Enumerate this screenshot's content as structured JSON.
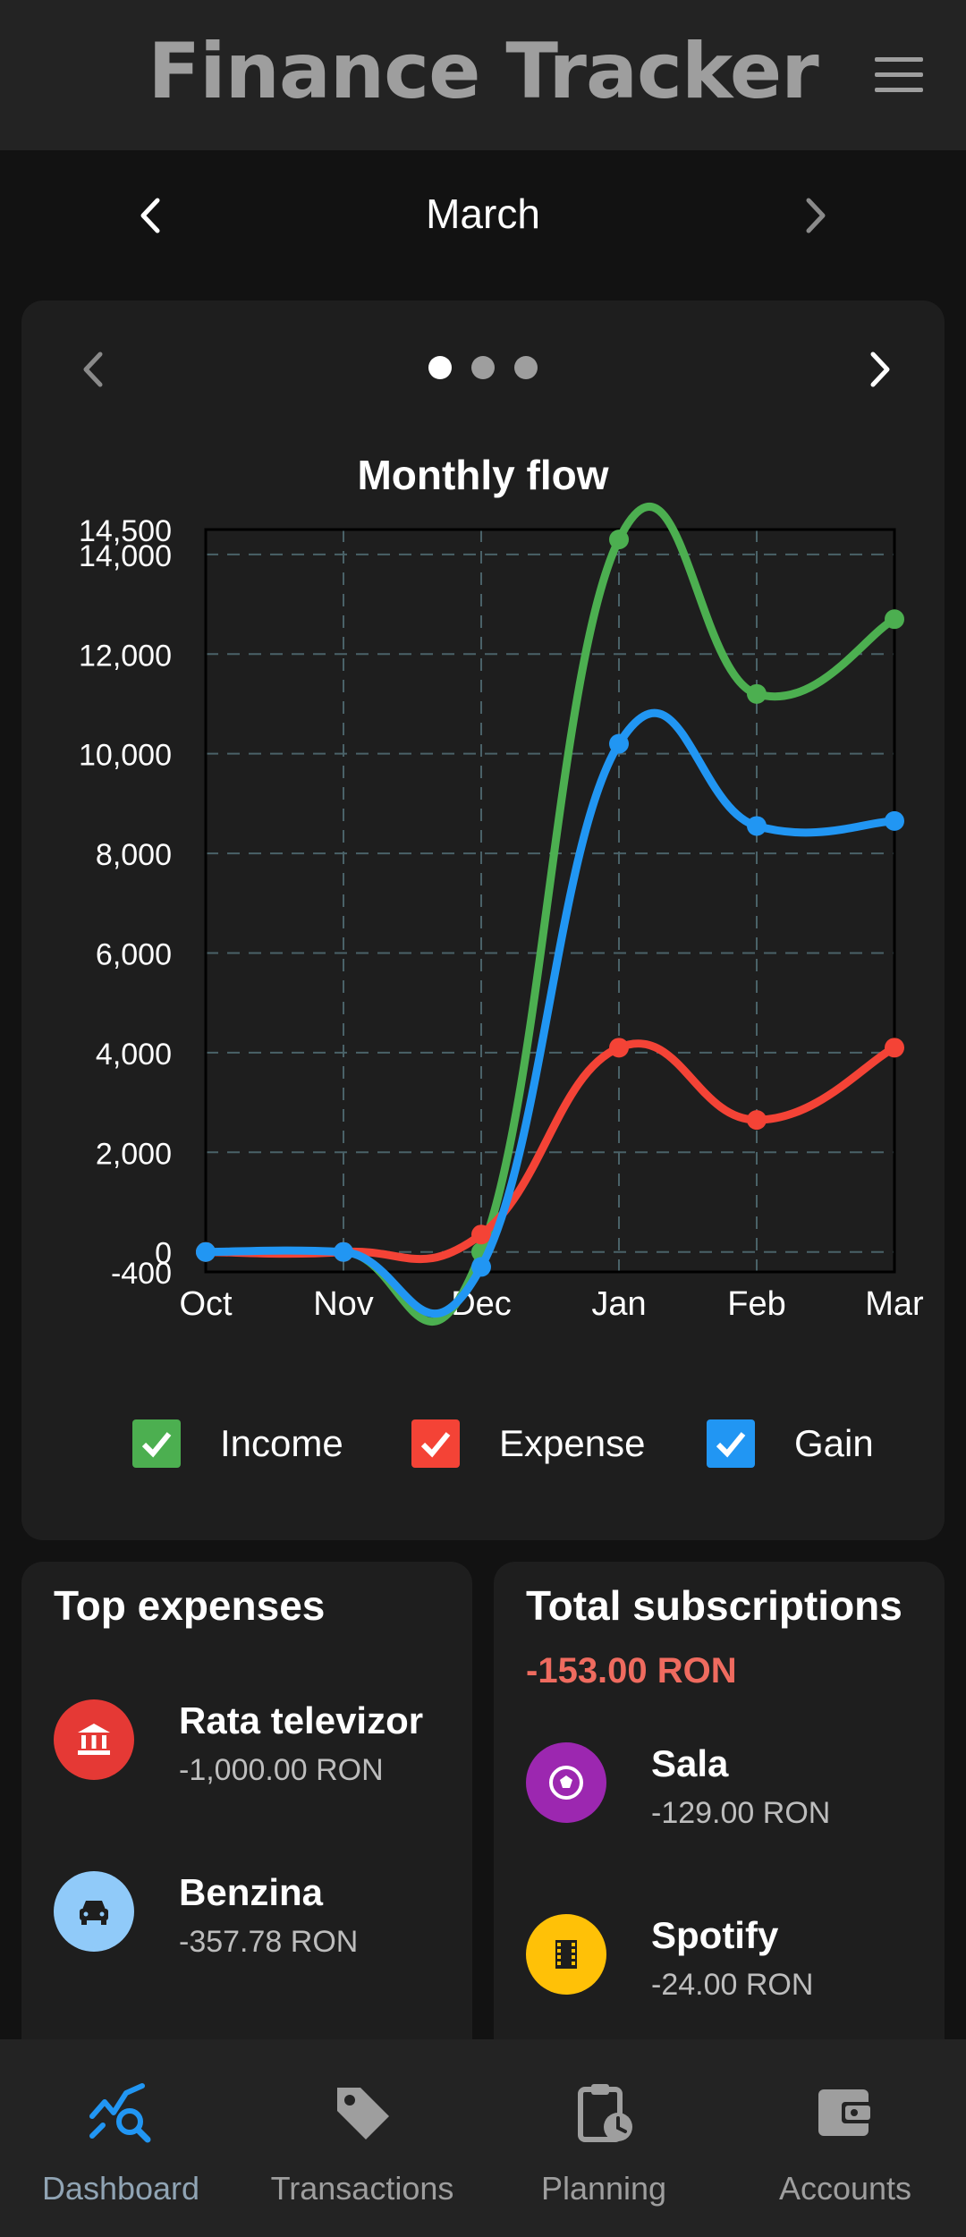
{
  "app": {
    "title": "Finance Tracker"
  },
  "month_selector": {
    "month": "March"
  },
  "chart_card": {
    "pages": 3,
    "active_page": 1,
    "legend": [
      {
        "label": "Income",
        "color": "#4caf50"
      },
      {
        "label": "Expense",
        "color": "#f44336"
      },
      {
        "label": "Gain",
        "color": "#2196f3"
      }
    ]
  },
  "chart_data": {
    "type": "line",
    "title": "Monthly flow",
    "categories": [
      "Oct",
      "Nov",
      "Dec",
      "Jan",
      "Feb",
      "Mar"
    ],
    "ylim": [
      -400,
      14500
    ],
    "yticks": [
      -400,
      0,
      2000,
      4000,
      6000,
      8000,
      10000,
      12000,
      14000,
      14500
    ],
    "ytick_labels": [
      "-400",
      "0",
      "2,000",
      "4,000",
      "6,000",
      "8,000",
      "10,000",
      "12,000",
      "14,000",
      "14,500"
    ],
    "grid": true,
    "legend_position": "bottom",
    "series": [
      {
        "name": "Income",
        "color": "#4caf50",
        "values": [
          0,
          0,
          0,
          14300,
          11200,
          12700
        ]
      },
      {
        "name": "Expense",
        "color": "#f44336",
        "values": [
          0,
          0,
          350,
          4100,
          2650,
          4100
        ]
      },
      {
        "name": "Gain",
        "color": "#2196f3",
        "values": [
          0,
          0,
          -300,
          10200,
          8550,
          8650
        ]
      }
    ]
  },
  "top_expenses": {
    "title": "Top expenses",
    "items": [
      {
        "name": "Rata televizor",
        "amount": "-1,000.00 RON",
        "icon": "bank-icon",
        "color": "#e53935"
      },
      {
        "name": "Benzina",
        "amount": "-357.78 RON",
        "icon": "car-icon",
        "color": "#90caf9"
      }
    ]
  },
  "subscriptions": {
    "title": "Total subscriptions",
    "total": "-153.00 RON",
    "items": [
      {
        "name": "Sala",
        "amount": "-129.00 RON",
        "icon": "soccer-ball-icon",
        "color": "#9c27b0"
      },
      {
        "name": "Spotify",
        "amount": "-24.00 RON",
        "icon": "film-icon",
        "color": "#ffc107"
      }
    ]
  },
  "bottom_nav": {
    "items": [
      {
        "label": "Dashboard",
        "icon": "dashboard-chart-icon",
        "active": true
      },
      {
        "label": "Transactions",
        "icon": "tag-icon",
        "active": false
      },
      {
        "label": "Planning",
        "icon": "clipboard-clock-icon",
        "active": false
      },
      {
        "label": "Accounts",
        "icon": "wallet-icon",
        "active": false
      }
    ]
  }
}
